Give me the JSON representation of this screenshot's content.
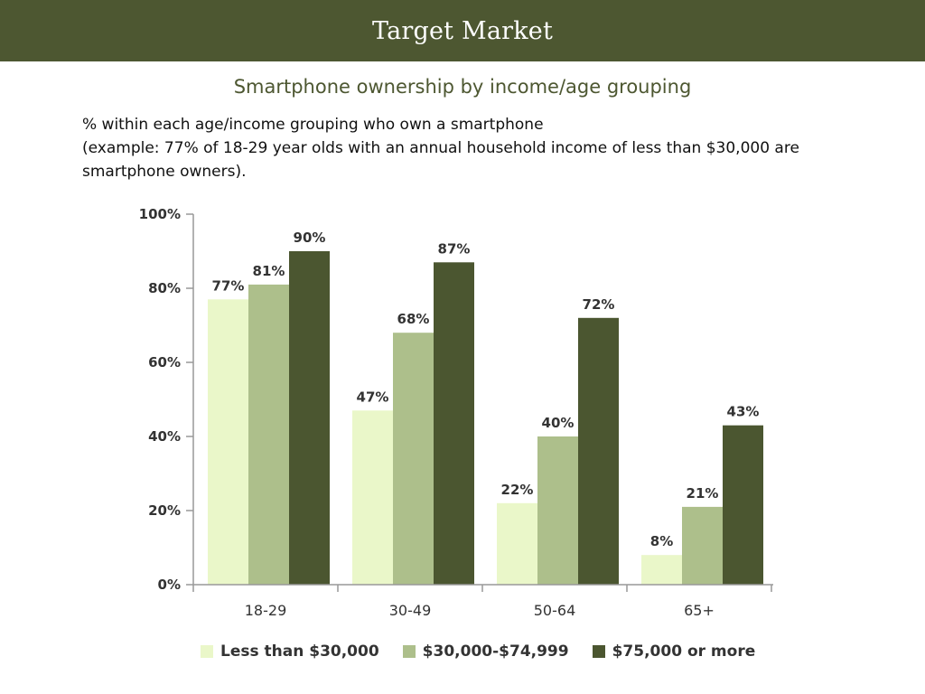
{
  "header": {
    "title": "Target Market"
  },
  "subtitle": "Smartphone ownership by income/age grouping",
  "description": {
    "line1": "% within each age/income grouping who own a smartphone",
    "line2": "(example: 77% of 18-29 year olds with an annual household income of less than $30,000 are smartphone owners)."
  },
  "colors": {
    "header": "#4d5731",
    "series": [
      "#eaf7c9",
      "#adbf8b",
      "#4b5630"
    ],
    "axis": "#999999"
  },
  "chart_data": {
    "type": "bar",
    "categories": [
      "18-29",
      "30-49",
      "50-64",
      "65+"
    ],
    "series": [
      {
        "name": "Less than $30,000",
        "values": [
          77,
          47,
          22,
          8
        ]
      },
      {
        "name": "$30,000-$74,999",
        "values": [
          81,
          68,
          40,
          21
        ]
      },
      {
        "name": "$75,000 or more",
        "values": [
          90,
          87,
          72,
          43
        ]
      }
    ],
    "value_labels": [
      [
        "77%",
        "47%",
        "22%",
        "8%"
      ],
      [
        "81%",
        "68%",
        "40%",
        "21%"
      ],
      [
        "90%",
        "87%",
        "72%",
        "43%"
      ]
    ],
    "yticks": [
      0,
      20,
      40,
      60,
      80,
      100
    ],
    "ytick_labels": [
      "0%",
      "20%",
      "40%",
      "60%",
      "80%",
      "100%"
    ],
    "ylim": [
      0,
      100
    ],
    "legend_position": "bottom",
    "grid": false
  }
}
